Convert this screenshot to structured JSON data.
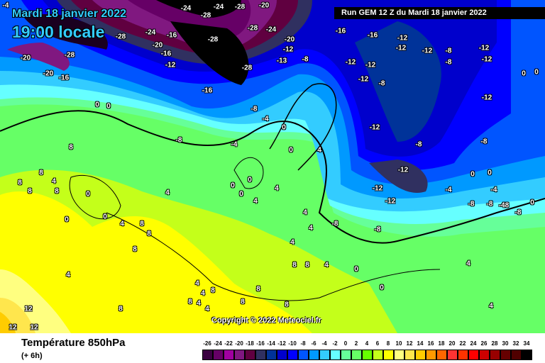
{
  "header": {
    "date": "Mardi 18 janvier 2022",
    "time": "19:00 locale",
    "run": "Run GEM 12 Z du Mardi 18 janvier 2022"
  },
  "copyright": "Copyright © 2022 Meteociel.fr",
  "footer": {
    "title": "Température 850hPa",
    "subtitle": "(+ 6h)"
  },
  "legend": [
    {
      "label": "-26",
      "color": "#3a0040"
    },
    {
      "label": "-24",
      "color": "#660066"
    },
    {
      "label": "-22",
      "color": "#a000a0"
    },
    {
      "label": "-20",
      "color": "#801880"
    },
    {
      "label": "-18",
      "color": "#600040"
    },
    {
      "label": "-16",
      "color": "#303060"
    },
    {
      "label": "-14",
      "color": "#003399"
    },
    {
      "label": "-12",
      "color": "#0000cc"
    },
    {
      "label": "-10",
      "color": "#0000ff"
    },
    {
      "label": "-8",
      "color": "#0055ff"
    },
    {
      "label": "-6",
      "color": "#0099ff"
    },
    {
      "label": "-4",
      "color": "#33ccff"
    },
    {
      "label": "-2",
      "color": "#66ffff"
    },
    {
      "label": "0",
      "color": "#66ff99"
    },
    {
      "label": "2",
      "color": "#66ff66"
    },
    {
      "label": "4",
      "color": "#66ff00"
    },
    {
      "label": "6",
      "color": "#c4ff1a"
    },
    {
      "label": "8",
      "color": "#ffff00"
    },
    {
      "label": "10",
      "color": "#ffff80"
    },
    {
      "label": "12",
      "color": "#ffe64d"
    },
    {
      "label": "14",
      "color": "#ffcc00"
    },
    {
      "label": "16",
      "color": "#ff9900"
    },
    {
      "label": "18",
      "color": "#ff6600"
    },
    {
      "label": "20",
      "color": "#ff3333"
    },
    {
      "label": "22",
      "color": "#ff3300"
    },
    {
      "label": "24",
      "color": "#ff0000"
    },
    {
      "label": "26",
      "color": "#cc0000"
    },
    {
      "label": "28",
      "color": "#990000"
    },
    {
      "label": "30",
      "color": "#660000"
    },
    {
      "label": "32",
      "color": "#500000"
    },
    {
      "label": "34",
      "color": "#000000"
    }
  ],
  "map_labels": [
    "-4",
    "-24",
    "-28",
    "-24",
    "-28",
    "-20",
    "-28",
    "-24",
    "-20",
    "-12",
    "-13",
    "-8",
    "-28",
    "-16",
    "-8",
    "-4",
    "0",
    "-8",
    "-4",
    "-28",
    "-24",
    "-16",
    "-20",
    "-16",
    "-28",
    "-20",
    "-20",
    "-16",
    "-12",
    "-28",
    "-16",
    "-16",
    "-12",
    "-12",
    "-12",
    "-8",
    "-12",
    "-8",
    "-12",
    "-12",
    "-12",
    "-12",
    "-8",
    "-12",
    "-12",
    "-8",
    "-8",
    "-12",
    "-12",
    "-12",
    "-8",
    "-4",
    "-8",
    "-8",
    "-48",
    "-8",
    "0",
    "-4",
    "0",
    "0",
    "0",
    "0",
    "-8",
    "0",
    "0",
    "8",
    "8",
    "4",
    "8",
    "8",
    "8",
    "0",
    "0",
    "0",
    "4",
    "8",
    "8",
    "8",
    "4",
    "4",
    "4",
    "8",
    "4",
    "4",
    "8",
    "12",
    "12",
    "12",
    "8",
    "8",
    "4",
    "8",
    "8",
    "4",
    "0",
    "0",
    "4",
    "4",
    "4",
    "4",
    "0",
    "0",
    "0",
    "0",
    "4",
    "4",
    "8",
    "4",
    "8",
    "4"
  ]
}
